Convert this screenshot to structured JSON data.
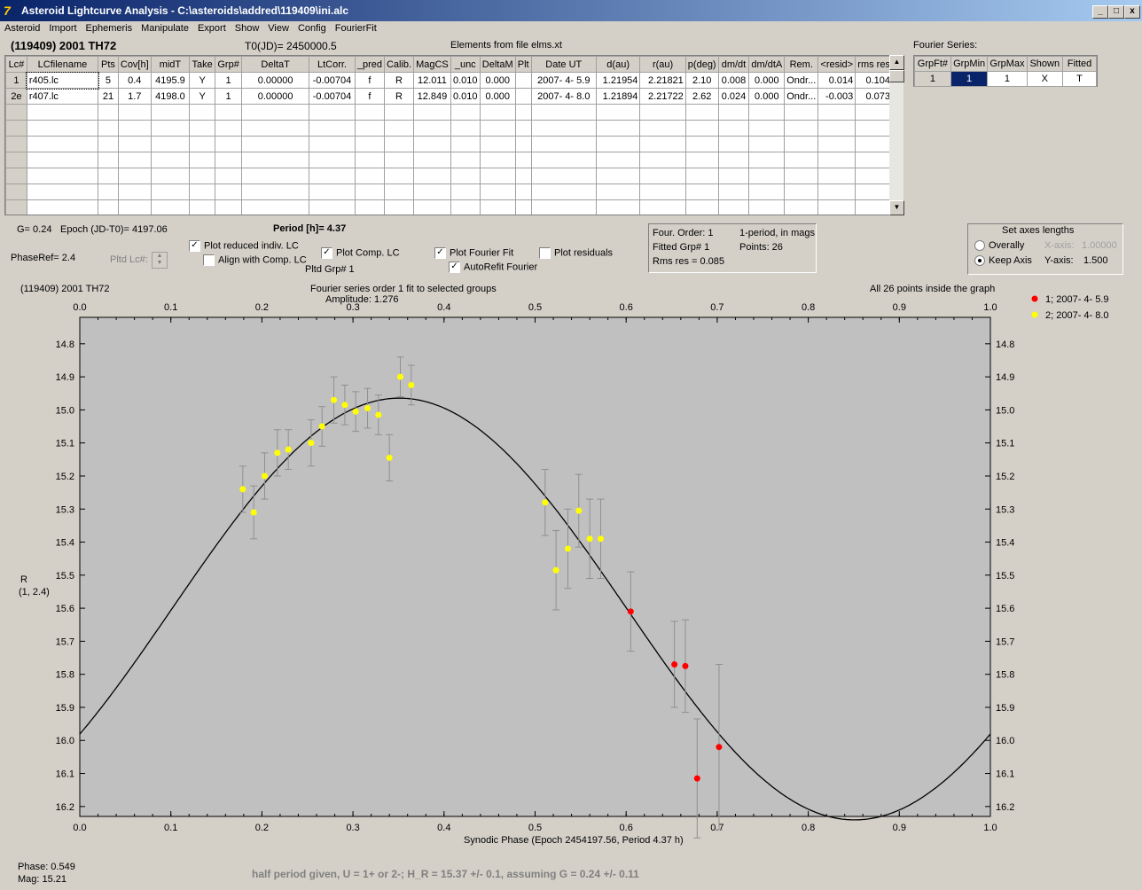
{
  "window": {
    "title": "Asteroid Lightcurve Analysis - C:\\asteroids\\addred\\119409\\ini.alc",
    "icon_text": "7",
    "min_label": "_",
    "max_label": "□",
    "close_label": "x"
  },
  "menu": [
    "Asteroid",
    "Import",
    "Ephemeris",
    "Manipulate",
    "Export",
    "Show",
    "View",
    "Config",
    "FourierFit"
  ],
  "header": {
    "asteroid": "(119409) 2001 TH72",
    "t0": "T0(JD)= 2450000.5",
    "elements": "Elements from file elms.xt"
  },
  "lc_table": {
    "columns": [
      "Lc#",
      "LCfilename",
      "Pts",
      "Cov[h]",
      "midT",
      "Take",
      "Grp#",
      "DeltaT",
      "LtCorr.",
      "_pred",
      "Calib.",
      "MagCS",
      "_unc",
      "DeltaM",
      "Plt",
      "Date UT",
      "d(au)",
      "r(au)",
      "p(deg)",
      "dm/dt",
      "dm/dtA",
      "Rem.",
      "<resid>",
      "rms res"
    ],
    "rows": [
      [
        "1",
        "r405.lc",
        "5",
        "0.4",
        "4195.9",
        "Y",
        "1",
        "0.00000",
        "-0.00704",
        "f",
        "R",
        "12.011",
        "0.010",
        "0.000",
        "",
        "2007- 4- 5.9",
        "1.21954",
        "2.21821",
        "2.10",
        "0.008",
        "0.000",
        "Ondr...",
        "0.014",
        "0.104"
      ],
      [
        "2e",
        "r407.lc",
        "21",
        "1.7",
        "4198.0",
        "Y",
        "1",
        "0.00000",
        "-0.00704",
        "f",
        "R",
        "12.849",
        "0.010",
        "0.000",
        "",
        "2007- 4- 8.0",
        "1.21894",
        "2.21722",
        "2.62",
        "0.024",
        "0.000",
        "Ondr...",
        "-0.003",
        "0.073"
      ]
    ],
    "empty_rows": 7
  },
  "fourier_series": {
    "label": "Fourier Series:",
    "columns": [
      "GrpFt#",
      "GrpMin",
      "GrpMax",
      "Shown",
      "Fitted"
    ],
    "row": [
      "1",
      "1",
      "1",
      "X",
      "T"
    ]
  },
  "controls": {
    "g_text": "G= 0.24",
    "epoch_text": "Epoch (JD-T0)= 4197.06",
    "period_text": "Period [h]= 4.37",
    "phaseref_text": "PhaseRef= 2.4",
    "pltd_lc_label": "Pltd Lc#:",
    "plot_reduced": {
      "label": "Plot reduced indiv. LC",
      "checked": true
    },
    "align_comp": {
      "label": "Align with Comp. LC",
      "checked": false
    },
    "plot_comp": {
      "label": "Plot Comp. LC",
      "checked": true
    },
    "pltd_grp": "Pltd Grp#  1",
    "plot_fourier": {
      "label": "Plot Fourier Fit",
      "checked": true
    },
    "autorefit": {
      "label": "AutoRefit Fourier",
      "checked": true
    },
    "plot_residuals": {
      "label": "Plot residuals",
      "checked": false
    },
    "check_mark": "✓"
  },
  "fit_info": {
    "four_order": "Four. Order:  1",
    "one_period": "1-period, in mags",
    "fitted_grp": "Fitted Grp# 1",
    "points": "Points: 26",
    "rms": "Rms res     = 0.085"
  },
  "axes_box": {
    "title": "Set axes lengths",
    "overally": "Overally",
    "keep_axis": "Keep Axis",
    "x_axis_label": "X-axis:",
    "x_axis_value": "1.00000",
    "y_axis_label": "Y-axis:",
    "y_axis_value": "1.500",
    "selected": "keep_axis"
  },
  "plot_text": {
    "top_left": "(119409) 2001 TH72",
    "fit_title": "Fourier series order 1 fit to selected groups",
    "amplitude": "Amplitude: 1.276",
    "inside": "All 26 points inside the graph",
    "y_label_1": "R",
    "y_label_2": "(1, 2.4)"
  },
  "footer": {
    "phase": "Phase:  0.549",
    "mag": "Mag:   15.21",
    "note": "half period given, U = 1+ or 2-; H_R = 15.37 +/- 0.1, assuming G = 0.24 +/- 0.11"
  },
  "colors": {
    "plot_bg": "#c0c0c0",
    "series1": "#ff0000",
    "series2": "#ffff00",
    "errorbar": "#909090",
    "fit": "#000000"
  },
  "chart_data": {
    "type": "scatter",
    "xlabel": "Synodic Phase (Epoch 2454197.56, Period 4.37 h)",
    "ylabel": "R (1, 2.4)",
    "xlim": [
      0.0,
      1.0
    ],
    "ylim": [
      16.23,
      14.72
    ],
    "x_ticks": [
      "0.0",
      "0.1",
      "0.2",
      "0.3",
      "0.4",
      "0.5",
      "0.6",
      "0.7",
      "0.8",
      "0.9",
      "1.0"
    ],
    "y_ticks": [
      "14.8",
      "14.9",
      "15.0",
      "15.1",
      "15.2",
      "15.3",
      "15.4",
      "15.5",
      "15.6",
      "15.7",
      "15.8",
      "15.9",
      "16.0",
      "16.1",
      "16.2"
    ],
    "legend_position": "top-right",
    "series": [
      {
        "name": "1; 2007- 4- 5.9",
        "color": "#ff0000",
        "x": [
          0.605,
          0.653,
          0.665,
          0.678,
          0.702
        ],
        "y": [
          15.61,
          15.77,
          15.775,
          16.115,
          16.02
        ],
        "err": [
          0.12,
          0.13,
          0.14,
          0.18,
          0.25
        ]
      },
      {
        "name": "2; 2007- 4- 8.0",
        "color": "#ffff00",
        "x": [
          0.179,
          0.191,
          0.203,
          0.217,
          0.229,
          0.254,
          0.266,
          0.279,
          0.291,
          0.303,
          0.316,
          0.328,
          0.34,
          0.352,
          0.364,
          0.511,
          0.523,
          0.536,
          0.548,
          0.56,
          0.572
        ],
        "y": [
          15.24,
          15.31,
          15.2,
          15.13,
          15.12,
          15.1,
          15.05,
          14.97,
          14.985,
          15.005,
          14.995,
          15.015,
          15.145,
          14.9,
          14.925,
          15.28,
          15.485,
          15.42,
          15.305,
          15.39,
          15.39
        ],
        "err": [
          0.07,
          0.08,
          0.07,
          0.07,
          0.06,
          0.07,
          0.06,
          0.07,
          0.06,
          0.06,
          0.06,
          0.06,
          0.07,
          0.06,
          0.06,
          0.1,
          0.12,
          0.12,
          0.11,
          0.12,
          0.12
        ]
      }
    ],
    "fit": {
      "name": "Fourier series order 1",
      "mean": 15.6025,
      "amplitude": 1.276,
      "max_phase": 0.351
    }
  }
}
